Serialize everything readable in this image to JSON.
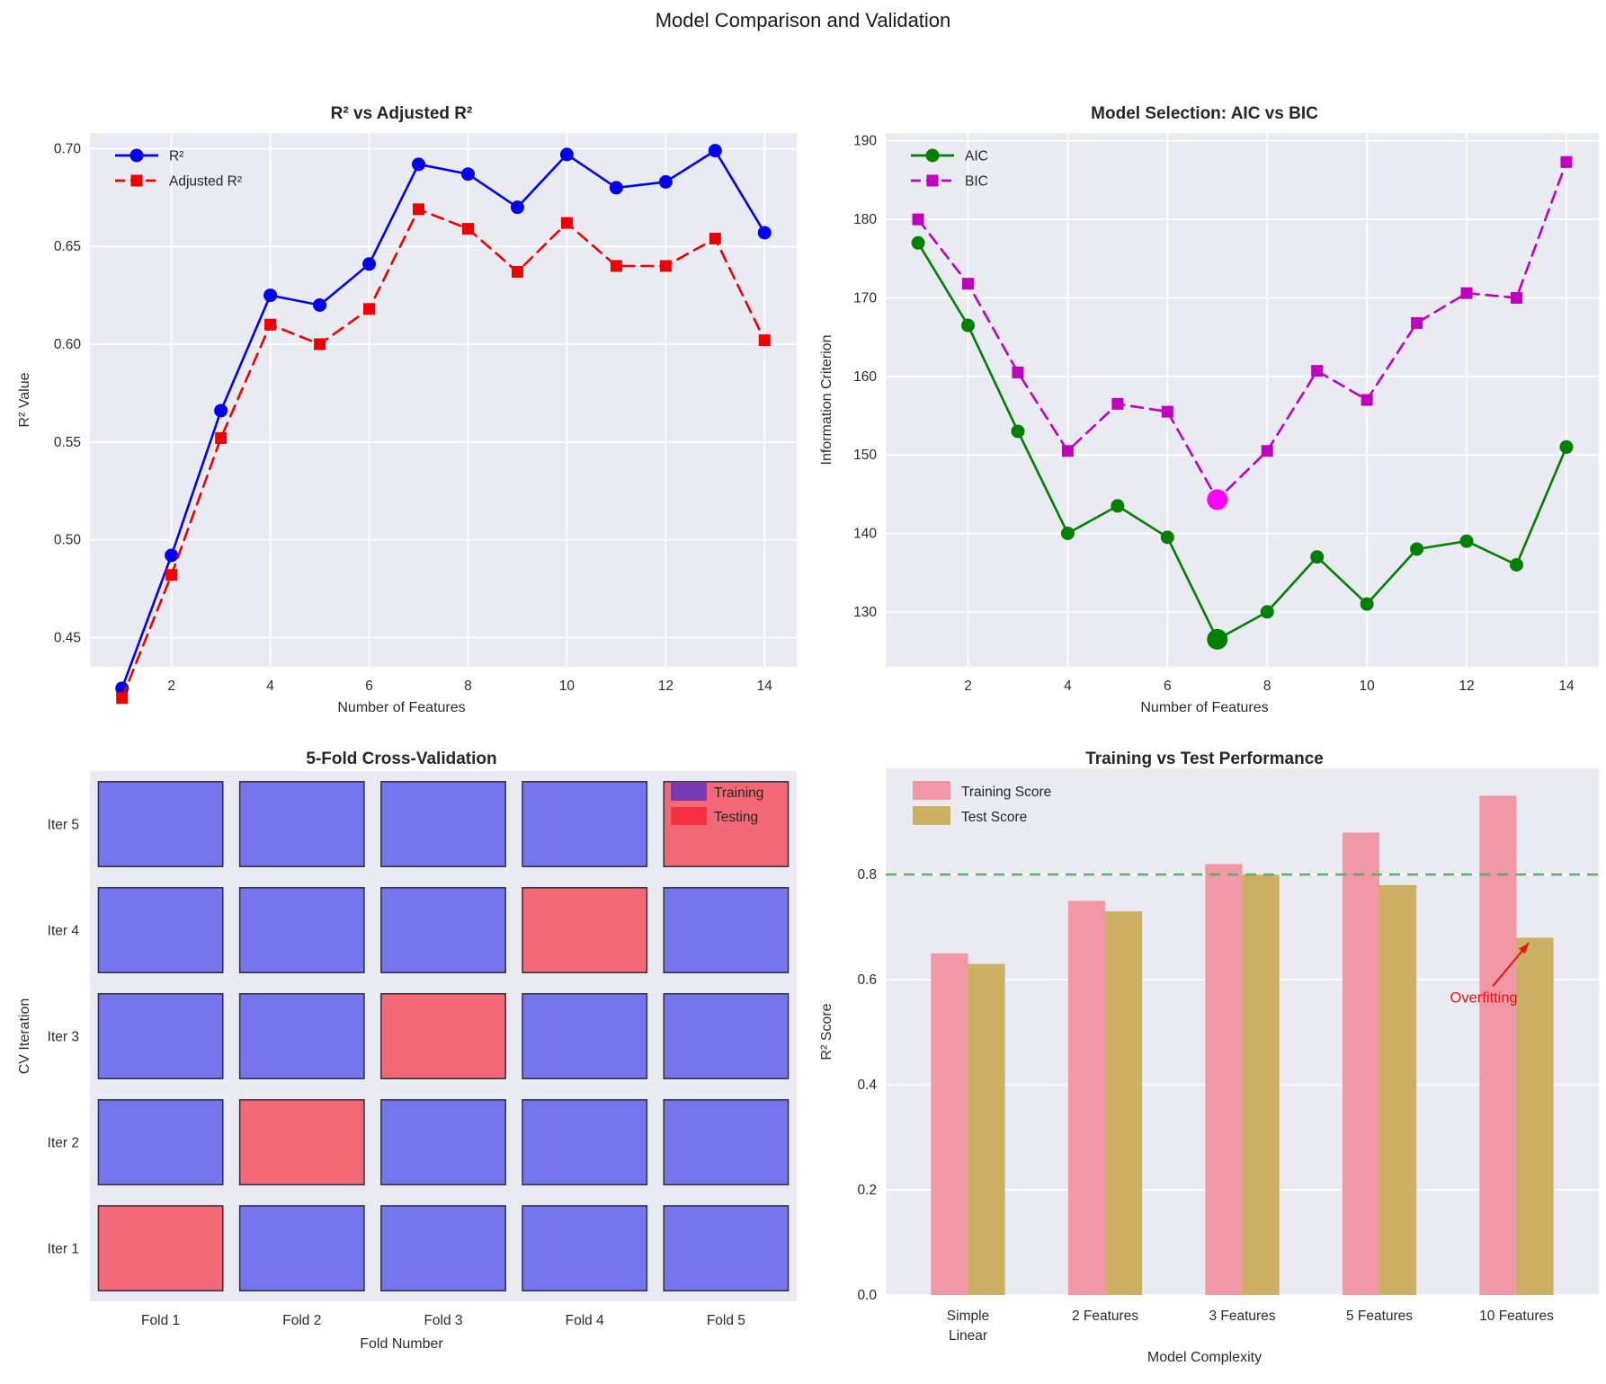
{
  "suptitle": "Model Comparison and Validation",
  "style": {
    "plot_bg": "#eaeaf2",
    "grid": "#ffffff",
    "text": "#2b2b2b",
    "title": "#262626"
  },
  "chart_data": [
    {
      "type": "line",
      "title": "R² vs Adjusted R²",
      "xlabel": "Number of Features",
      "ylabel": "R² Value",
      "x": [
        1,
        2,
        3,
        4,
        5,
        6,
        7,
        8,
        9,
        10,
        11,
        12,
        13,
        14
      ],
      "series": [
        {
          "name": "R²",
          "color": "#0000ee",
          "linestyle": "solid",
          "marker": "circle",
          "values": [
            0.424,
            0.492,
            0.566,
            0.625,
            0.62,
            0.641,
            0.692,
            0.687,
            0.67,
            0.697,
            0.68,
            0.683,
            0.699,
            0.657
          ]
        },
        {
          "name": "Adjusted R²",
          "color": "#ee0000",
          "linestyle": "dashed",
          "marker": "square",
          "values": [
            0.419,
            0.482,
            0.552,
            0.61,
            0.6,
            0.618,
            0.669,
            0.659,
            0.637,
            0.662,
            0.64,
            0.64,
            0.654,
            0.602
          ]
        }
      ],
      "xlim": [
        0.35,
        14.65
      ],
      "ylim": [
        0.435,
        0.708
      ],
      "xticks": [
        2,
        4,
        6,
        8,
        10,
        12,
        14
      ],
      "xtick_labels": [
        "2",
        "4",
        "6",
        "8",
        "10",
        "12",
        "14"
      ],
      "yticks": [
        0.45,
        0.5,
        0.55,
        0.6,
        0.65,
        0.7
      ],
      "ytick_labels": [
        "0.45",
        "0.50",
        "0.55",
        "0.60",
        "0.65",
        "0.70"
      ],
      "legend_position": "upper left",
      "grid": true
    },
    {
      "type": "line",
      "title": "Model Selection: AIC vs BIC",
      "xlabel": "Number of Features",
      "ylabel": "Information Criterion",
      "x": [
        1,
        2,
        3,
        4,
        5,
        6,
        7,
        8,
        9,
        10,
        11,
        12,
        13,
        14
      ],
      "series": [
        {
          "name": "AIC",
          "color": "#008000",
          "linestyle": "solid",
          "marker": "circle",
          "values": [
            177,
            166.5,
            153,
            140,
            143.5,
            139.5,
            126.5,
            130,
            137,
            131,
            138,
            139,
            136,
            151
          ]
        },
        {
          "name": "BIC",
          "color": "#bf00bf",
          "linestyle": "dashed",
          "marker": "square",
          "values": [
            180,
            171.8,
            160.5,
            150.5,
            156.5,
            155.5,
            144.3,
            150.5,
            160.7,
            157,
            166.8,
            170.6,
            170,
            187.3
          ]
        }
      ],
      "highlights": [
        {
          "x": 7,
          "y": 126.5,
          "color": "#008000",
          "meaning": "AIC minimum"
        },
        {
          "x": 7,
          "y": 144.3,
          "color": "#ff00ff",
          "meaning": "BIC minimum"
        }
      ],
      "xlim": [
        0.35,
        14.65
      ],
      "ylim": [
        123,
        191
      ],
      "xticks": [
        2,
        4,
        6,
        8,
        10,
        12,
        14
      ],
      "xtick_labels": [
        "2",
        "4",
        "6",
        "8",
        "10",
        "12",
        "14"
      ],
      "yticks": [
        130,
        140,
        150,
        160,
        170,
        180,
        190
      ],
      "ytick_labels": [
        "130",
        "140",
        "150",
        "160",
        "170",
        "180",
        "190"
      ],
      "legend_position": "upper left",
      "grid": true
    },
    {
      "type": "cv-grid",
      "title": "5-Fold Cross-Validation",
      "xlabel": "Fold Number",
      "ylabel": "CV Iteration",
      "fold_labels": [
        "Fold 1",
        "Fold 2",
        "Fold 3",
        "Fold 4",
        "Fold 5"
      ],
      "iteration_labels": [
        "Iter 1",
        "Iter 2",
        "Iter 3",
        "Iter 4",
        "Iter 5"
      ],
      "test_fold_per_iteration": [
        1,
        2,
        3,
        4,
        5
      ],
      "colors": {
        "training": "rgba(20,20,235,0.55)",
        "testing": "rgba(250,10,30,0.58)",
        "edge": "#2e2e3e"
      },
      "legend": [
        {
          "label": "Training",
          "key": "training"
        },
        {
          "label": "Testing",
          "key": "testing"
        }
      ]
    },
    {
      "type": "bar",
      "title": "Training vs Test Performance",
      "xlabel": "Model Complexity",
      "ylabel": "R² Score",
      "categories": [
        "Simple\nLinear",
        "2 Features",
        "3 Features",
        "5 Features",
        "10 Features"
      ],
      "series": [
        {
          "name": "Training Score",
          "color": "#f297a6",
          "values": [
            0.65,
            0.75,
            0.82,
            0.88,
            0.95
          ]
        },
        {
          "name": "Test Score",
          "color": "#ccb165",
          "values": [
            0.63,
            0.73,
            0.8,
            0.78,
            0.68
          ]
        }
      ],
      "yticks": [
        0,
        0.2,
        0.4,
        0.6,
        0.8
      ],
      "ytick_labels": [
        "0.0",
        "0.2",
        "0.4",
        "0.6",
        "0.8"
      ],
      "ylim": [
        0,
        1.002
      ],
      "reference_line": {
        "y": 0.8,
        "color": "#5faf6b",
        "linestyle": "dashed"
      },
      "annotation": {
        "text": "Overfitting",
        "color": "#f50f0f",
        "target_category_index": 4,
        "target_series": "Test Score",
        "target_value": 0.68
      },
      "legend_position": "upper left",
      "grid": true
    }
  ]
}
